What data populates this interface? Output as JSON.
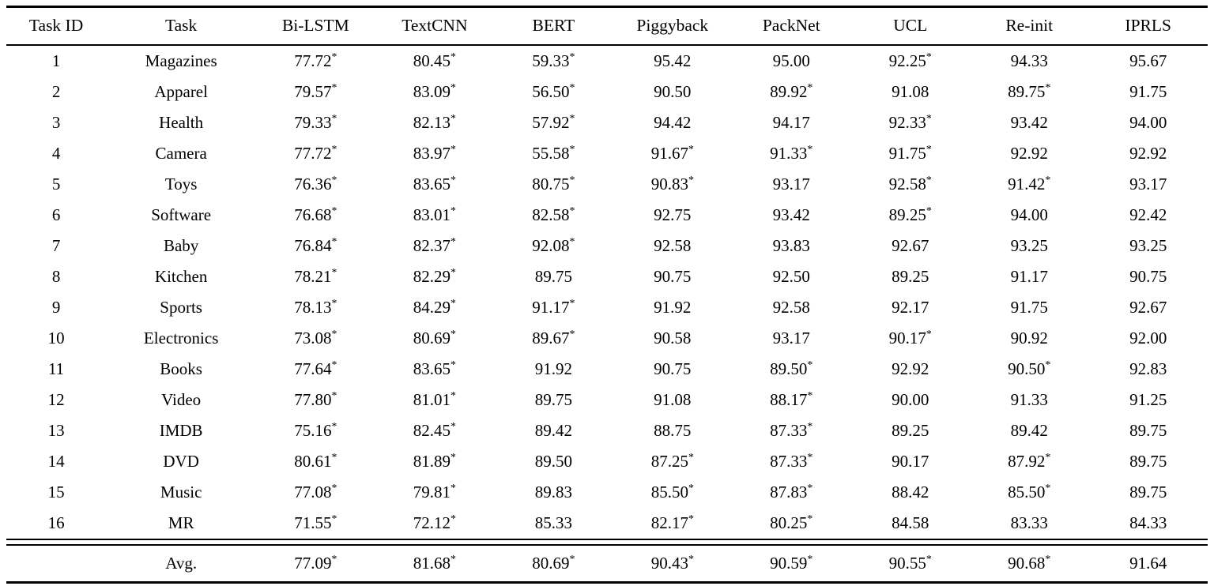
{
  "table": {
    "columns": [
      "Task ID",
      "Task",
      "Bi-LSTM",
      "TextCNN",
      "BERT",
      "Piggyback",
      "PackNet",
      "UCL",
      "Re-init",
      "IPRLS"
    ],
    "rows": [
      [
        "1",
        "Magazines",
        "77.72*",
        "80.45*",
        "59.33*",
        "95.42",
        "95.00",
        "92.25*",
        "94.33",
        "95.67"
      ],
      [
        "2",
        "Apparel",
        "79.57*",
        "83.09*",
        "56.50*",
        "90.50",
        "89.92*",
        "91.08",
        "89.75*",
        "91.75"
      ],
      [
        "3",
        "Health",
        "79.33*",
        "82.13*",
        "57.92*",
        "94.42",
        "94.17",
        "92.33*",
        "93.42",
        "94.00"
      ],
      [
        "4",
        "Camera",
        "77.72*",
        "83.97*",
        "55.58*",
        "91.67*",
        "91.33*",
        "91.75*",
        "92.92",
        "92.92"
      ],
      [
        "5",
        "Toys",
        "76.36*",
        "83.65*",
        "80.75*",
        "90.83*",
        "93.17",
        "92.58*",
        "91.42*",
        "93.17"
      ],
      [
        "6",
        "Software",
        "76.68*",
        "83.01*",
        "82.58*",
        "92.75",
        "93.42",
        "89.25*",
        "94.00",
        "92.42"
      ],
      [
        "7",
        "Baby",
        "76.84*",
        "82.37*",
        "92.08*",
        "92.58",
        "93.83",
        "92.67",
        "93.25",
        "93.25"
      ],
      [
        "8",
        "Kitchen",
        "78.21*",
        "82.29*",
        "89.75",
        "90.75",
        "92.50",
        "89.25",
        "91.17",
        "90.75"
      ],
      [
        "9",
        "Sports",
        "78.13*",
        "84.29*",
        "91.17*",
        "91.92",
        "92.58",
        "92.17",
        "91.75",
        "92.67"
      ],
      [
        "10",
        "Electronics",
        "73.08*",
        "80.69*",
        "89.67*",
        "90.58",
        "93.17",
        "90.17*",
        "90.92",
        "92.00"
      ],
      [
        "11",
        "Books",
        "77.64*",
        "83.65*",
        "91.92",
        "90.75",
        "89.50*",
        "92.92",
        "90.50*",
        "92.83"
      ],
      [
        "12",
        "Video",
        "77.80*",
        "81.01*",
        "89.75",
        "91.08",
        "88.17*",
        "90.00",
        "91.33",
        "91.25"
      ],
      [
        "13",
        "IMDB",
        "75.16*",
        "82.45*",
        "89.42",
        "88.75",
        "87.33*",
        "89.25",
        "89.42",
        "89.75"
      ],
      [
        "14",
        "DVD",
        "80.61*",
        "81.89*",
        "89.50",
        "87.25*",
        "87.33*",
        "90.17",
        "87.92*",
        "89.75"
      ],
      [
        "15",
        "Music",
        "77.08*",
        "79.81*",
        "89.83",
        "85.50*",
        "87.83*",
        "88.42",
        "85.50*",
        "89.75"
      ],
      [
        "16",
        "MR",
        "71.55*",
        "72.12*",
        "85.33",
        "82.17*",
        "80.25*",
        "84.58",
        "83.33",
        "84.33"
      ]
    ],
    "avg_row": [
      "",
      "Avg.",
      "77.09*",
      "81.68*",
      "80.69*",
      "90.43*",
      "90.59*",
      "90.55*",
      "90.68*",
      "91.64"
    ]
  }
}
